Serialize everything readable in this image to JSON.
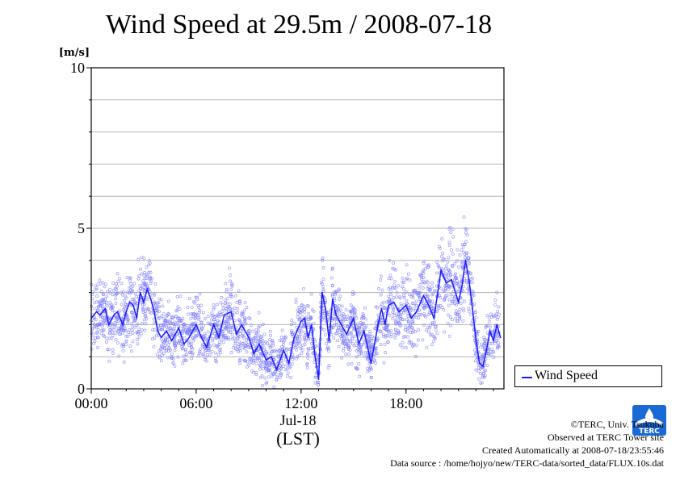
{
  "page": {
    "title": "Wind Speed at 29.5m / 2008-07-18"
  },
  "legend": {
    "label": "Wind Speed"
  },
  "credits": {
    "line1": "©TERC, Univ. Tsukuba",
    "line2": "Observed at TERC Tower site",
    "line3": "Created Automatically at 2008-07-18/23:55:46",
    "line4": "Data source : /home/hojyo/new/TERC-data/sorted_data/FLUX.10s.dat"
  },
  "logo": {
    "text": "TERC"
  },
  "colors": {
    "series": "#1a1aff",
    "scatter": "#7a7aff",
    "grid": "#b4b4b4"
  },
  "chart_data": {
    "type": "line",
    "title": "Wind Speed at 29.5m / 2008-07-18",
    "ylabel": "[m/s]",
    "xlabel": "Jul-18",
    "xlabel2": "(LST)",
    "ylim": [
      0,
      10
    ],
    "xlim": [
      0,
      23.6
    ],
    "yticks": [
      0,
      5,
      10
    ],
    "ygrid": [
      1,
      2,
      3,
      4,
      5,
      6,
      7,
      8,
      9
    ],
    "xticks": [
      {
        "value": 0,
        "label": "00:00"
      },
      {
        "value": 6,
        "label": "06:00"
      },
      {
        "value": 12,
        "label": "12:00"
      },
      {
        "value": 18,
        "label": "18:00"
      }
    ],
    "series": [
      {
        "name": "Wind Speed",
        "x": [
          0,
          0.3,
          0.5,
          0.8,
          1,
          1.3,
          1.5,
          1.8,
          2,
          2.2,
          2.4,
          2.6,
          2.8,
          3,
          3.2,
          3.4,
          3.6,
          3.8,
          4,
          4.3,
          4.6,
          5,
          5.3,
          5.6,
          6,
          6.3,
          6.6,
          7,
          7.3,
          7.6,
          8,
          8.3,
          8.6,
          9,
          9.3,
          9.6,
          10,
          10.3,
          10.6,
          11,
          11.3,
          11.6,
          12,
          12.2,
          12.4,
          12.6,
          12.8,
          13,
          13.2,
          13.4,
          13.6,
          13.8,
          14,
          14.3,
          14.6,
          15,
          15.3,
          15.6,
          16,
          16.2,
          16.4,
          16.6,
          16.8,
          17,
          17.3,
          17.6,
          18,
          18.3,
          18.6,
          19,
          19.3,
          19.6,
          20,
          20.3,
          20.6,
          21,
          21.2,
          21.4,
          21.6,
          21.8,
          22,
          22.2,
          22.4,
          22.6,
          22.8,
          23,
          23.2,
          23.4
        ],
        "values": [
          2.2,
          2.4,
          2.3,
          2.5,
          2.0,
          2.3,
          2.4,
          2.0,
          2.4,
          2.7,
          2.6,
          2.2,
          3.0,
          2.7,
          3.1,
          2.8,
          2.4,
          1.8,
          1.6,
          1.8,
          1.5,
          1.9,
          1.4,
          1.6,
          2.0,
          1.6,
          1.3,
          2.0,
          1.6,
          2.3,
          2.4,
          1.7,
          2.0,
          1.6,
          1.1,
          1.4,
          0.9,
          1.0,
          0.6,
          1.2,
          0.8,
          1.6,
          2.1,
          2.2,
          1.6,
          2.0,
          1.0,
          0.3,
          3.0,
          2.5,
          1.5,
          2.8,
          2.3,
          2.0,
          1.7,
          2.2,
          1.4,
          1.8,
          0.8,
          1.4,
          2.0,
          2.5,
          2.0,
          2.6,
          2.7,
          2.4,
          2.6,
          2.2,
          2.4,
          2.9,
          2.6,
          2.2,
          3.7,
          3.3,
          3.4,
          2.7,
          3.2,
          4.0,
          3.4,
          2.5,
          1.5,
          0.8,
          0.7,
          1.2,
          1.8,
          1.5,
          2.0,
          1.6
        ]
      }
    ]
  }
}
